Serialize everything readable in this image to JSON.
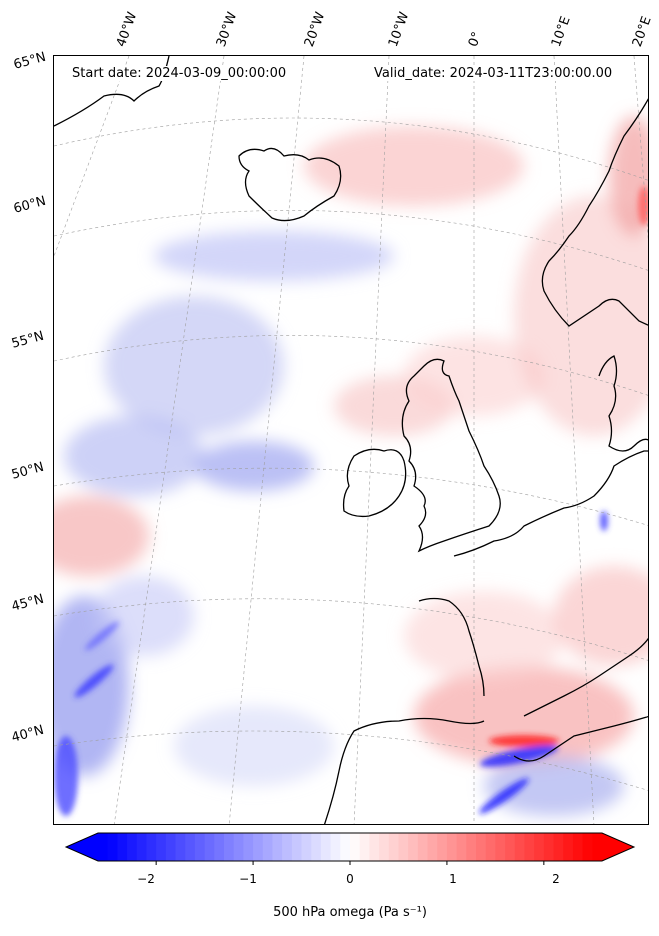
{
  "map": {
    "start_label": "Start date: 2024-03-09_00:00:00",
    "valid_label": "Valid_date: 2024-03-11T23:00:00.00",
    "lat_labels": [
      "65°N",
      "60°N",
      "55°N",
      "50°N",
      "45°N",
      "40°N"
    ],
    "lon_labels": [
      "40°W",
      "30°W",
      "20°W",
      "10°W",
      "0°",
      "10°E",
      "20°E"
    ],
    "coastline_color": "#000000",
    "gridline_color": "#9e9e9e"
  },
  "colorbar": {
    "tick_labels": [
      "−2",
      "−1",
      "0",
      "1",
      "2"
    ],
    "tick_values": [
      -2,
      -1,
      0,
      1,
      2
    ],
    "range": [
      -2.6,
      2.6
    ],
    "caption": "500 hPa omega (Pa s⁻¹)",
    "color_min": "#0000ff",
    "color_mid": "#ffffff",
    "color_max": "#ff0000",
    "extend": "both"
  }
}
